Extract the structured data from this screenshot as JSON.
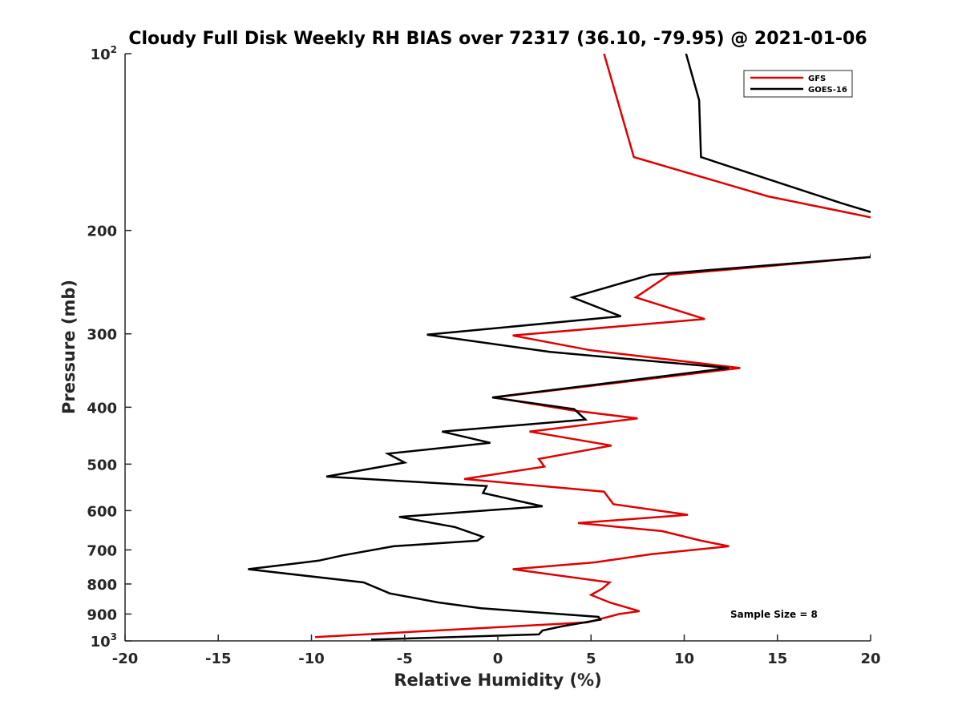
{
  "chart_data": {
    "type": "line",
    "title": "Cloudy Full Disk Weekly RH BIAS over 72317 (36.10, -79.95) @ 2021-01-06",
    "xlabel": "Relative Humidity (%)",
    "ylabel": "Pressure (mb)",
    "xlim": [
      -20,
      20
    ],
    "ylim": [
      100,
      1000
    ],
    "yscale": "log",
    "y_reversed": true,
    "grid": false,
    "x_ticks": [
      -20,
      -15,
      -10,
      -5,
      0,
      5,
      10,
      15,
      20
    ],
    "x_tick_labels": [
      "-20",
      "-15",
      "-10",
      "-5",
      "0",
      "5",
      "10",
      "15",
      "20"
    ],
    "y_ticks": [
      {
        "value": 100,
        "base": "10",
        "exp": "2"
      },
      {
        "value": 200,
        "label": "200"
      },
      {
        "value": 300,
        "label": "300"
      },
      {
        "value": 400,
        "label": "400"
      },
      {
        "value": 500,
        "label": "500"
      },
      {
        "value": 600,
        "label": "600"
      },
      {
        "value": 700,
        "label": "700"
      },
      {
        "value": 800,
        "label": "800"
      },
      {
        "value": 900,
        "label": "900"
      },
      {
        "value": 1000,
        "base": "10",
        "exp": "3"
      }
    ],
    "legend": {
      "position": "top-right"
    },
    "annotation": "Sample Size = 8",
    "series": [
      {
        "name": "GFS",
        "color": "#e00000",
        "points": [
          [
            5.7,
            100
          ],
          [
            7.3,
            150
          ],
          [
            14.5,
            175
          ],
          [
            20.0,
            190
          ],
          [
            20.5,
            191
          ],
          [
            20.0,
            222
          ],
          [
            9.2,
            238
          ],
          [
            7.4,
            260
          ],
          [
            11.1,
            283
          ],
          [
            0.8,
            302
          ],
          [
            5.0,
            320
          ],
          [
            13.0,
            343
          ],
          [
            -0.2,
            385
          ],
          [
            4.0,
            405
          ],
          [
            7.5,
            418
          ],
          [
            1.7,
            440
          ],
          [
            6.1,
            465
          ],
          [
            2.2,
            490
          ],
          [
            2.5,
            505
          ],
          [
            -1.8,
            530
          ],
          [
            5.7,
            557
          ],
          [
            6.2,
            585
          ],
          [
            10.2,
            610
          ],
          [
            4.3,
            630
          ],
          [
            8.8,
            650
          ],
          [
            10.9,
            675
          ],
          [
            12.4,
            690
          ],
          [
            8.2,
            712
          ],
          [
            5.2,
            735
          ],
          [
            0.8,
            755
          ],
          [
            6.0,
            795
          ],
          [
            5.6,
            815
          ],
          [
            5.0,
            835
          ],
          [
            6.0,
            860
          ],
          [
            7.6,
            890
          ],
          [
            6.5,
            900
          ],
          [
            4.8,
            930
          ],
          [
            -9.8,
            985
          ]
        ]
      },
      {
        "name": "GOES-16",
        "color": "#000000",
        "points": [
          [
            10.1,
            100
          ],
          [
            10.8,
            120
          ],
          [
            10.9,
            150
          ],
          [
            18.5,
            180
          ],
          [
            20.0,
            186
          ],
          [
            20.5,
            187
          ],
          [
            20.0,
            222
          ],
          [
            8.2,
            238
          ],
          [
            4.0,
            260
          ],
          [
            6.6,
            280
          ],
          [
            -3.8,
            301
          ],
          [
            2.8,
            322
          ],
          [
            12.4,
            343
          ],
          [
            -0.3,
            385
          ],
          [
            4.1,
            403
          ],
          [
            4.7,
            420
          ],
          [
            -3.0,
            440
          ],
          [
            -0.4,
            460
          ],
          [
            -5.9,
            480
          ],
          [
            -5.0,
            497
          ],
          [
            -9.2,
            525
          ],
          [
            -0.6,
            545
          ],
          [
            -0.8,
            560
          ],
          [
            2.4,
            590
          ],
          [
            -5.3,
            615
          ],
          [
            -2.3,
            640
          ],
          [
            -0.8,
            665
          ],
          [
            -1.1,
            675
          ],
          [
            -5.6,
            690
          ],
          [
            -8.3,
            715
          ],
          [
            -9.6,
            730
          ],
          [
            -13.4,
            755
          ],
          [
            -7.2,
            795
          ],
          [
            -5.8,
            830
          ],
          [
            -3.2,
            860
          ],
          [
            -0.9,
            880
          ],
          [
            5.4,
            910
          ],
          [
            5.5,
            920
          ],
          [
            3.4,
            945
          ],
          [
            2.4,
            960
          ],
          [
            2.2,
            975
          ],
          [
            -6.8,
            995
          ]
        ]
      }
    ]
  }
}
